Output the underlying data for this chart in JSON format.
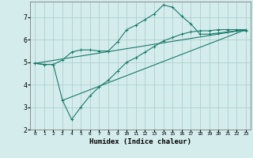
{
  "xlabel": "Humidex (Indice chaleur)",
  "ylabel": "",
  "bg_color": "#d4ecec",
  "grid_color": "#aed0d0",
  "line_color": "#1a7a6a",
  "xlim": [
    -0.5,
    23.5
  ],
  "ylim": [
    2,
    7.7
  ],
  "xticks": [
    0,
    1,
    2,
    3,
    4,
    5,
    6,
    7,
    8,
    9,
    10,
    11,
    12,
    13,
    14,
    15,
    16,
    17,
    18,
    19,
    20,
    21,
    22,
    23
  ],
  "yticks": [
    2,
    3,
    4,
    5,
    6,
    7
  ],
  "curve1_x": [
    0,
    1,
    2,
    3,
    4,
    5,
    6,
    7,
    8,
    9,
    10,
    11,
    12,
    13,
    14,
    15,
    16,
    17,
    18,
    19,
    20,
    21,
    22,
    23
  ],
  "curve1_y": [
    4.95,
    4.9,
    4.9,
    5.1,
    5.45,
    5.55,
    5.55,
    5.5,
    5.5,
    5.9,
    6.45,
    6.65,
    6.9,
    7.15,
    7.55,
    7.45,
    7.05,
    6.7,
    6.25,
    6.25,
    6.3,
    6.35,
    6.4,
    6.4
  ],
  "curve2_x": [
    0,
    1,
    2,
    3,
    4,
    5,
    6,
    7,
    8,
    9,
    10,
    11,
    12,
    13,
    14,
    15,
    16,
    17,
    18,
    19,
    20,
    21,
    22,
    23
  ],
  "curve2_y": [
    4.95,
    4.9,
    4.9,
    3.3,
    2.45,
    3.0,
    3.5,
    3.9,
    4.2,
    4.6,
    5.0,
    5.2,
    5.45,
    5.7,
    5.95,
    6.1,
    6.25,
    6.35,
    6.4,
    6.4,
    6.45,
    6.45,
    6.45,
    6.45
  ],
  "curve3_x": [
    0,
    23
  ],
  "curve3_y": [
    4.95,
    6.45
  ],
  "curve4_x": [
    3,
    23
  ],
  "curve4_y": [
    3.3,
    6.45
  ]
}
